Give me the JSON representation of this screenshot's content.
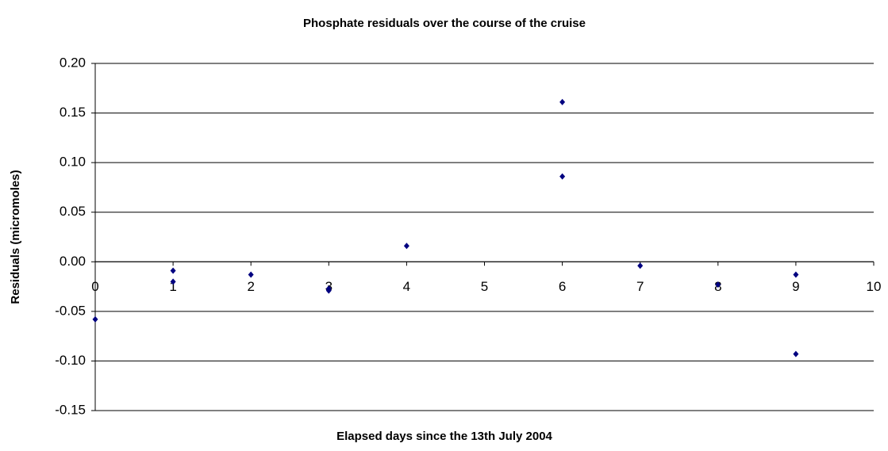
{
  "chart_data": {
    "type": "scatter",
    "title": "Phosphate residuals over the course of the cruise",
    "x_label": "Elapsed days since the 13th July 2004",
    "y_label": "Residuals (micromoles)",
    "series": [
      {
        "color": "#000080",
        "x": [
          0,
          1,
          1,
          2,
          3,
          3,
          4,
          6,
          6,
          7,
          8,
          9,
          9
        ],
        "values": [
          -0.058,
          -0.009,
          -0.02,
          -0.013,
          -0.029,
          -0.027,
          0.016,
          0.161,
          0.086,
          -0.004,
          -0.023,
          -0.013,
          -0.093
        ]
      }
    ],
    "xlim": [
      0,
      10
    ],
    "xticks": [
      0,
      1,
      2,
      3,
      4,
      5,
      6,
      7,
      8,
      9,
      10
    ],
    "ylim": [
      -0.15,
      0.2
    ],
    "yticks": [
      {
        "value": -0.15,
        "label": "-0.15"
      },
      {
        "value": -0.1,
        "label": "-0.10"
      },
      {
        "value": -0.05,
        "label": "-0.05"
      },
      {
        "value": 0,
        "label": "0.00"
      },
      {
        "value": 0.05,
        "label": "0.05"
      },
      {
        "value": 0.1,
        "label": "0.10"
      },
      {
        "value": 0.15,
        "label": "0.15"
      },
      {
        "value": 0.2,
        "label": "0.20"
      }
    ],
    "grid": true
  }
}
